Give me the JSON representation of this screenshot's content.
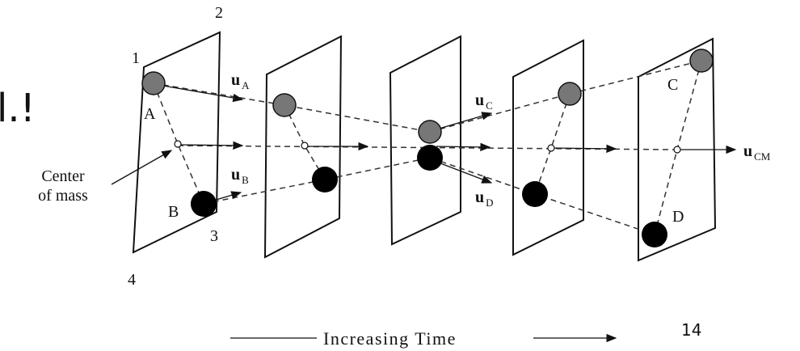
{
  "slide_text": "l.!",
  "corners": [
    "1",
    "2",
    "3",
    "4"
  ],
  "particles": {
    "A": "A",
    "B": "B",
    "C": "C",
    "D": "D"
  },
  "velocities": [
    {
      "symbol": "u",
      "subscript": "A"
    },
    {
      "symbol": "u",
      "subscript": "B"
    },
    {
      "symbol": "u",
      "subscript": "C"
    },
    {
      "symbol": "u",
      "subscript": "D"
    },
    {
      "symbol": "u",
      "subscript": "CM"
    }
  ],
  "center_label": [
    "Center",
    "of mass"
  ],
  "time_label": "Increasing Time",
  "page_number": "14"
}
